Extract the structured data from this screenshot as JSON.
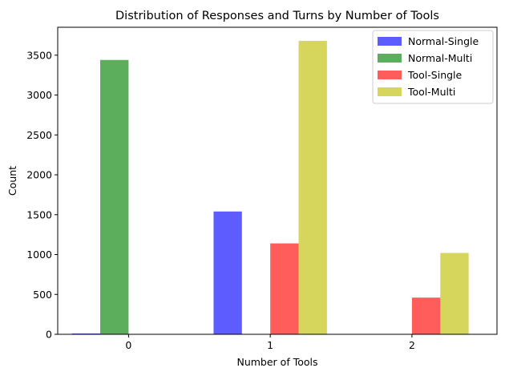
{
  "chart_data": {
    "type": "bar",
    "title": "Distribution of Responses and Turns by Number of Tools",
    "xlabel": "Number of Tools",
    "ylabel": "Count",
    "categories": [
      "0",
      "1",
      "2"
    ],
    "ylim": [
      0,
      3850
    ],
    "yticks": [
      0,
      500,
      1000,
      1500,
      2000,
      2500,
      3000,
      3500
    ],
    "grid": false,
    "legend_position": "top-right",
    "series": [
      {
        "name": "Normal-Single",
        "color": "#3333ff",
        "values": [
          10,
          1540,
          0
        ]
      },
      {
        "name": "Normal-Multi",
        "color": "#339933",
        "values": [
          3440,
          0,
          0
        ]
      },
      {
        "name": "Tool-Single",
        "color": "#ff3333",
        "values": [
          0,
          1140,
          460
        ]
      },
      {
        "name": "Tool-Multi",
        "color": "#cccc33",
        "values": [
          0,
          3680,
          1020
        ]
      }
    ]
  }
}
